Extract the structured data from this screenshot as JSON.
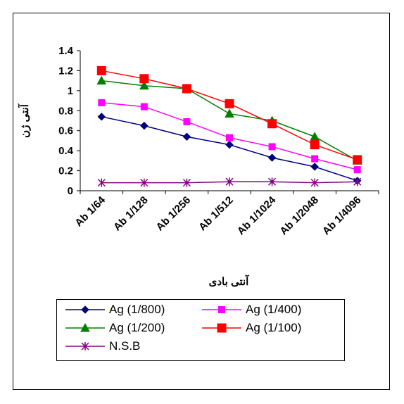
{
  "chart_data": {
    "type": "line",
    "title": "",
    "xlabel": "آنتی بادی",
    "ylabel": "آنتی ژن",
    "categories": [
      "Ab 1/64",
      "Ab 1/128",
      "Ab 1/256",
      "Ab 1/512",
      "Ab 1/1024",
      "Ab 1/2048",
      "Ab 1/4096"
    ],
    "ylim": [
      0,
      1.4
    ],
    "yticks": [
      "0",
      "0.2",
      "0.4",
      "0.6",
      "0.8",
      "1",
      "1.2",
      "1.4"
    ],
    "grid": false,
    "legend_position": "bottom",
    "series": [
      {
        "name": "Ag (1/800)",
        "color": "#000080",
        "marker": "diamond",
        "values": [
          0.74,
          0.65,
          0.54,
          0.46,
          0.33,
          0.24,
          0.1
        ]
      },
      {
        "name": "Ag (1/400)",
        "color": "#ff00ff",
        "marker": "square",
        "values": [
          0.88,
          0.84,
          0.69,
          0.53,
          0.44,
          0.32,
          0.21
        ]
      },
      {
        "name": "Ag (1/200)",
        "color": "#008000",
        "marker": "triangle",
        "values": [
          1.1,
          1.05,
          1.02,
          0.77,
          0.7,
          0.54,
          0.3
        ]
      },
      {
        "name": "Ag (1/100)",
        "color": "#ff0000",
        "marker": "square-large",
        "values": [
          1.2,
          1.12,
          1.02,
          0.87,
          0.67,
          0.46,
          0.31
        ]
      },
      {
        "name": "N.S.B",
        "color": "#800080",
        "marker": "asterisk",
        "values": [
          0.08,
          0.08,
          0.08,
          0.09,
          0.09,
          0.08,
          0.09
        ]
      }
    ]
  }
}
